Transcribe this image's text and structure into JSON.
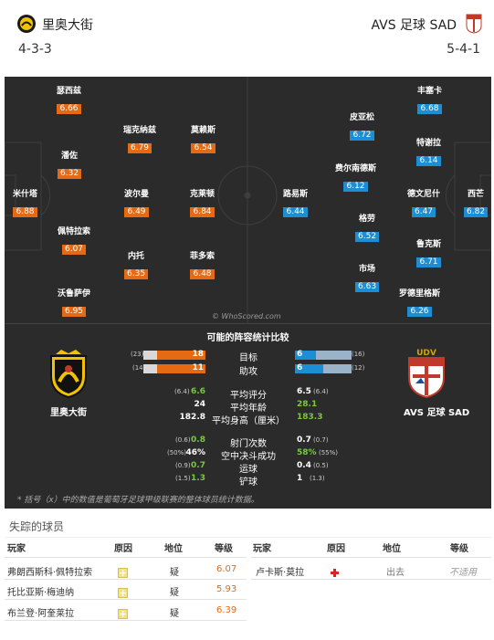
{
  "header": {
    "home_name": "里奥大街",
    "away_name": "AVS 足球 SAD",
    "home_formation": "4-3-3",
    "away_formation": "5-4-1"
  },
  "pitch": {
    "watermark": "© WhoScored.com",
    "home_players": [
      {
        "name": "瑟西兹",
        "rating": "6.66"
      },
      {
        "name": "瑞克纳兹",
        "rating": "6.79"
      },
      {
        "name": "莫赖斯",
        "rating": "6.54"
      },
      {
        "name": "潘佐",
        "rating": "6.32"
      },
      {
        "name": "米什塔",
        "rating": "6.88"
      },
      {
        "name": "波尔曼",
        "rating": "6.49"
      },
      {
        "name": "克莱顿",
        "rating": "6.84"
      },
      {
        "name": "佩特拉索",
        "rating": "6.07"
      },
      {
        "name": "内托",
        "rating": "6.35"
      },
      {
        "name": "菲多索",
        "rating": "6.48"
      },
      {
        "name": "沃鲁萨伊",
        "rating": "6.95"
      }
    ],
    "away_players": [
      {
        "name": "丰塞卡",
        "rating": "6.68"
      },
      {
        "name": "皮亚松",
        "rating": "6.72"
      },
      {
        "name": "特谢拉",
        "rating": "6.14"
      },
      {
        "name": "费尔南德斯",
        "rating": "6.12"
      },
      {
        "name": "路易斯",
        "rating": "6.44"
      },
      {
        "name": "德文尼什",
        "rating": "6.47"
      },
      {
        "name": "西芒",
        "rating": "6.82"
      },
      {
        "name": "格劳",
        "rating": "6.52"
      },
      {
        "name": "鲁克斯",
        "rating": "6.71"
      },
      {
        "name": "市场",
        "rating": "6.63"
      },
      {
        "name": "罗德里格斯",
        "rating": "6.26"
      }
    ]
  },
  "stats": {
    "title": "可能的阵容统计比较",
    "home_club": "里奥大街",
    "away_club": "AVS 足球 SAD",
    "goals": {
      "label": "目标",
      "home": "18",
      "home_avg": "(23)",
      "away": "6",
      "away_avg": "(16)",
      "home_v": 18,
      "home_max": 23,
      "away_v": 6,
      "away_max": 16
    },
    "assists": {
      "label": "助攻",
      "home": "11",
      "home_avg": "(14)",
      "away": "6",
      "away_avg": "(12)",
      "home_v": 11,
      "home_max": 14,
      "away_v": 6,
      "away_max": 12
    },
    "rows1": [
      {
        "label": "平均评分",
        "home": "6.6",
        "home_avg": "(6.4)",
        "away": "6.5",
        "away_avg": "(6.4)",
        "home_color": "#78c841",
        "away_color": "#ffffff"
      },
      {
        "label": "平均年龄",
        "home": "24",
        "home_avg": "",
        "away": "28.1",
        "away_avg": "",
        "home_color": "#ffffff",
        "away_color": "#78c841"
      },
      {
        "label": "平均身高（厘米）",
        "home": "182.8",
        "home_avg": "",
        "away": "183.3",
        "away_avg": "",
        "home_color": "#ffffff",
        "away_color": "#78c841"
      }
    ],
    "rows2": [
      {
        "label": "射门次数",
        "home": "0.8",
        "home_avg": "(0.6)",
        "away": "0.7",
        "away_avg": "(0.7)",
        "home_color": "#78c841",
        "away_color": "#ffffff"
      },
      {
        "label": "空中决斗成功",
        "home": "46%",
        "home_avg": "(50%)",
        "away": "58%",
        "away_avg": "(55%)",
        "home_color": "#ffffff",
        "away_color": "#78c841"
      },
      {
        "label": "运球",
        "home": "0.7",
        "home_avg": "(0.9)",
        "away": "0.4",
        "away_avg": "(0.5)",
        "home_color": "#78c841",
        "away_color": "#ffffff"
      },
      {
        "label": "铲球",
        "home": "1.3",
        "home_avg": "(1.5)",
        "away": "1",
        "away_avg": "(1.3)",
        "home_color": "#78c841",
        "away_color": "#ffffff"
      }
    ],
    "note": "* 括号（x）中的数值是葡萄牙足球甲级联赛的整体球员统计数据。"
  },
  "missing": {
    "title": "失踪的球员",
    "headers": {
      "player": "玩家",
      "reason": "原因",
      "status": "地位",
      "rating": "等级"
    },
    "home": [
      {
        "player": "弗朗西斯科·佩特拉索",
        "status": "疑",
        "rating": "6.07"
      },
      {
        "player": "托比亚斯·梅迪纳",
        "status": "疑",
        "rating": "5.93"
      },
      {
        "player": "布兰登·阿奎莱拉",
        "status": "疑",
        "rating": "6.39"
      }
    ],
    "away": [
      {
        "player": "卢卡斯·莫拉",
        "status": "出去",
        "rating": "不适用"
      }
    ]
  }
}
